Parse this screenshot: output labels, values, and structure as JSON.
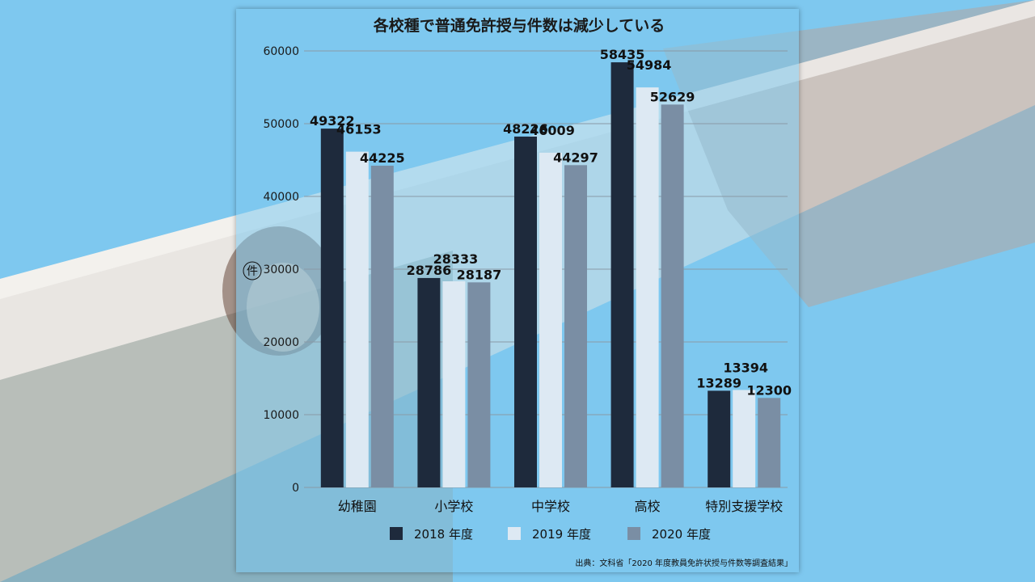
{
  "colors": {
    "series_2018": "#1e2a3c",
    "series_2019": "#dde9f3",
    "series_2020": "#7a8ea4",
    "background": "#7ec8ef"
  },
  "chart_data": {
    "type": "bar",
    "title": "各校種で普通免許授与件数は減少している",
    "ylabel": "件",
    "xlabel": "",
    "ylim": [
      0,
      60000
    ],
    "yticks": [
      0,
      10000,
      20000,
      30000,
      40000,
      50000,
      60000
    ],
    "grid": true,
    "legend_position": "bottom",
    "categories": [
      "幼稚園",
      "小学校",
      "中学校",
      "高校",
      "特別支援学校"
    ],
    "series": [
      {
        "name": "2018 年度",
        "values": [
          49322,
          28786,
          48226,
          58435,
          13289
        ]
      },
      {
        "name": "2019 年度",
        "values": [
          46153,
          28333,
          46009,
          54984,
          13394
        ]
      },
      {
        "name": "2020 年度",
        "values": [
          44225,
          28187,
          44297,
          52629,
          12300
        ]
      }
    ],
    "source": "出典：文科省「2020 年度教員免許状授与件数等調査結果」"
  }
}
